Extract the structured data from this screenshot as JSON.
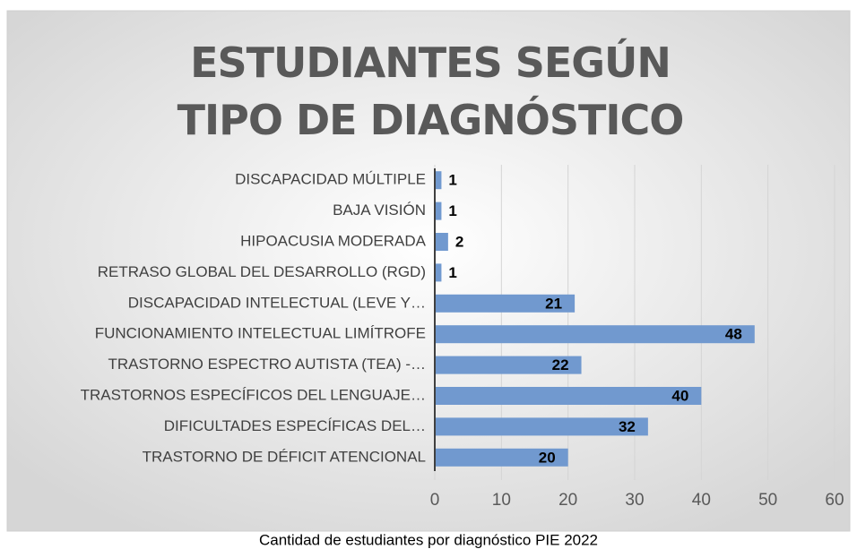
{
  "chart_data": {
    "type": "barh",
    "title": "ESTUDIANTES SEGÚN TIPO DE DIAGNÓSTICO",
    "caption": "Cantidad de estudiantes por diagnóstico PIE 2022",
    "categories": [
      "DISCAPACIDAD MÚLTIPLE",
      "BAJA VISIÓN",
      "HIPOACUSIA MODERADA",
      "RETRASO GLOBAL DEL DESARROLLO (RGD)",
      "DISCAPACIDAD INTELECTUAL (LEVE Y…",
      "FUNCIONAMIENTO INTELECTUAL LIMÍTROFE",
      "TRASTORNO ESPECTRO AUTISTA (TEA) -…",
      "TRASTORNOS ESPECÍFICOS DEL LENGUAJE…",
      "DIFICULTADES ESPECÍFICAS DEL…",
      "TRASTORNO DE DÉFICIT ATENCIONAL"
    ],
    "values": [
      1,
      1,
      2,
      1,
      21,
      48,
      22,
      40,
      32,
      20
    ],
    "color": "#7199cf",
    "xlim": [
      0,
      60
    ],
    "xticks": [
      0,
      10,
      20,
      30,
      40,
      50,
      60
    ],
    "grid": true
  }
}
